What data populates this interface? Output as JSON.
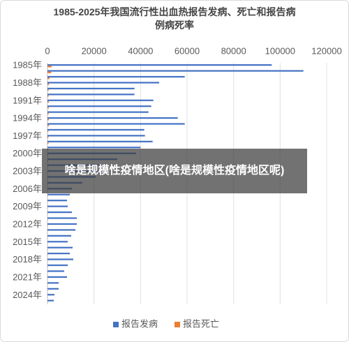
{
  "chart_data": {
    "type": "bar",
    "orientation": "horizontal",
    "title": "1985-2025年我国流行性出血热报告发病、死亡和报告病例病死率",
    "categories": [
      "1985年",
      null,
      null,
      "1988年",
      null,
      null,
      "1991年",
      null,
      null,
      "1994年",
      null,
      null,
      "1997年",
      null,
      null,
      "2000年",
      null,
      null,
      "2003年",
      null,
      null,
      "2006年",
      null,
      null,
      "2009年",
      null,
      null,
      "2012年",
      null,
      null,
      "2015年",
      null,
      null,
      "2018年",
      null,
      null,
      "2021年",
      null,
      null,
      "2024年",
      null
    ],
    "series": [
      {
        "name": "报告发病",
        "color": "#4472c4",
        "values": [
          96400,
          110000,
          59000,
          48000,
          37400,
          37400,
          45500,
          44600,
          43400,
          56000,
          59000,
          41600,
          41900,
          45200,
          40000,
          38000,
          30000,
          22200,
          25100,
          20700,
          15000,
          10500,
          9600,
          8400,
          8700,
          10500,
          12600,
          12600,
          12000,
          10200,
          8700,
          10800,
          9600,
          11100,
          8700,
          7200,
          8400,
          4800,
          4800,
          3000,
          2700
        ]
      },
      {
        "name": "报告死亡",
        "color": "#ed7d31",
        "values": [
          1800,
          1600,
          900,
          700,
          500,
          500,
          600,
          550,
          500,
          600,
          650,
          400,
          400,
          450,
          400,
          350,
          300,
          250,
          200,
          180,
          150,
          100,
          100,
          80,
          80,
          100,
          120,
          120,
          110,
          100,
          80,
          90,
          80,
          90,
          70,
          60,
          60,
          40,
          40,
          30,
          30
        ]
      }
    ],
    "xlim": [
      0,
      120000
    ],
    "xticks": [
      0,
      20000,
      40000,
      60000,
      80000,
      100000,
      120000
    ],
    "grid": true,
    "legend": "bottom"
  },
  "overlay": {
    "text": "啥是规模性疫情地区(啥是规模性疫情地区呢)"
  }
}
